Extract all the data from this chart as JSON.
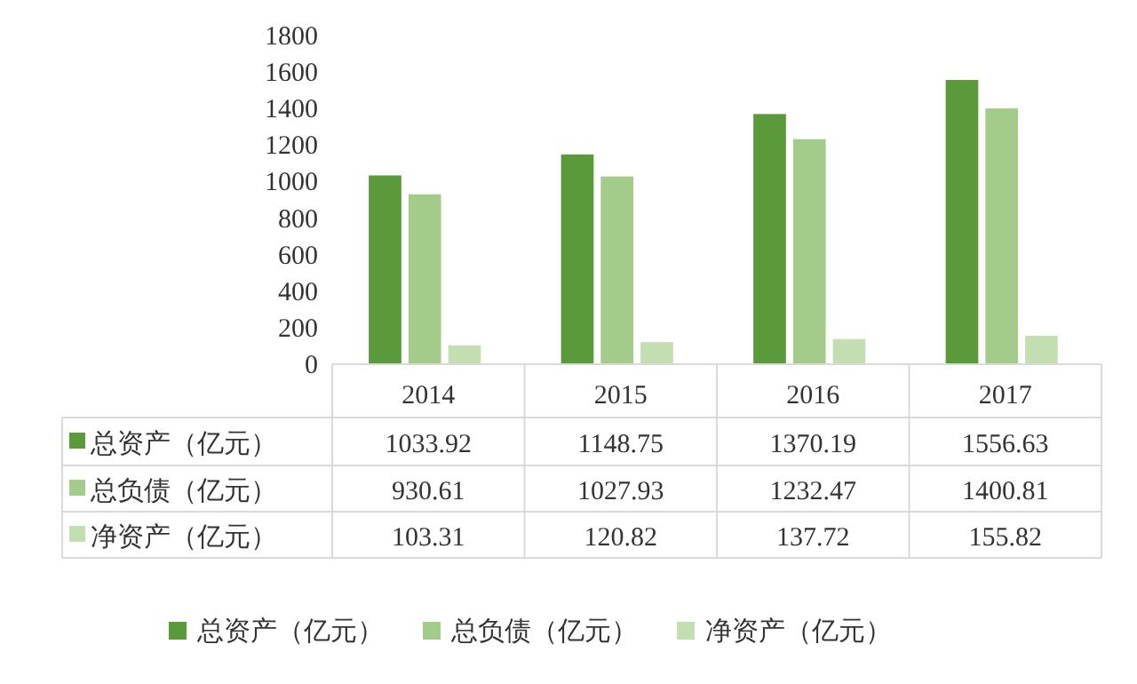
{
  "chart_data": {
    "type": "bar",
    "categories": [
      "2014",
      "2015",
      "2016",
      "2017"
    ],
    "series": [
      {
        "name": "总资产（亿元）",
        "color": "#5b9a3a",
        "values": [
          1033.92,
          1148.75,
          1370.19,
          1556.63
        ]
      },
      {
        "name": "总负债（亿元）",
        "color": "#a3cb8a",
        "values": [
          930.61,
          1027.93,
          1232.47,
          1400.81
        ]
      },
      {
        "name": "净资产（亿元）",
        "color": "#c3dfb1",
        "values": [
          103.31,
          120.82,
          137.72,
          155.82
        ]
      }
    ],
    "ylim": [
      0,
      1800
    ],
    "yticks": [
      0,
      200,
      400,
      600,
      800,
      1000,
      1200,
      1400,
      1600,
      1800
    ],
    "data_labels": true,
    "legend": "bottom"
  }
}
